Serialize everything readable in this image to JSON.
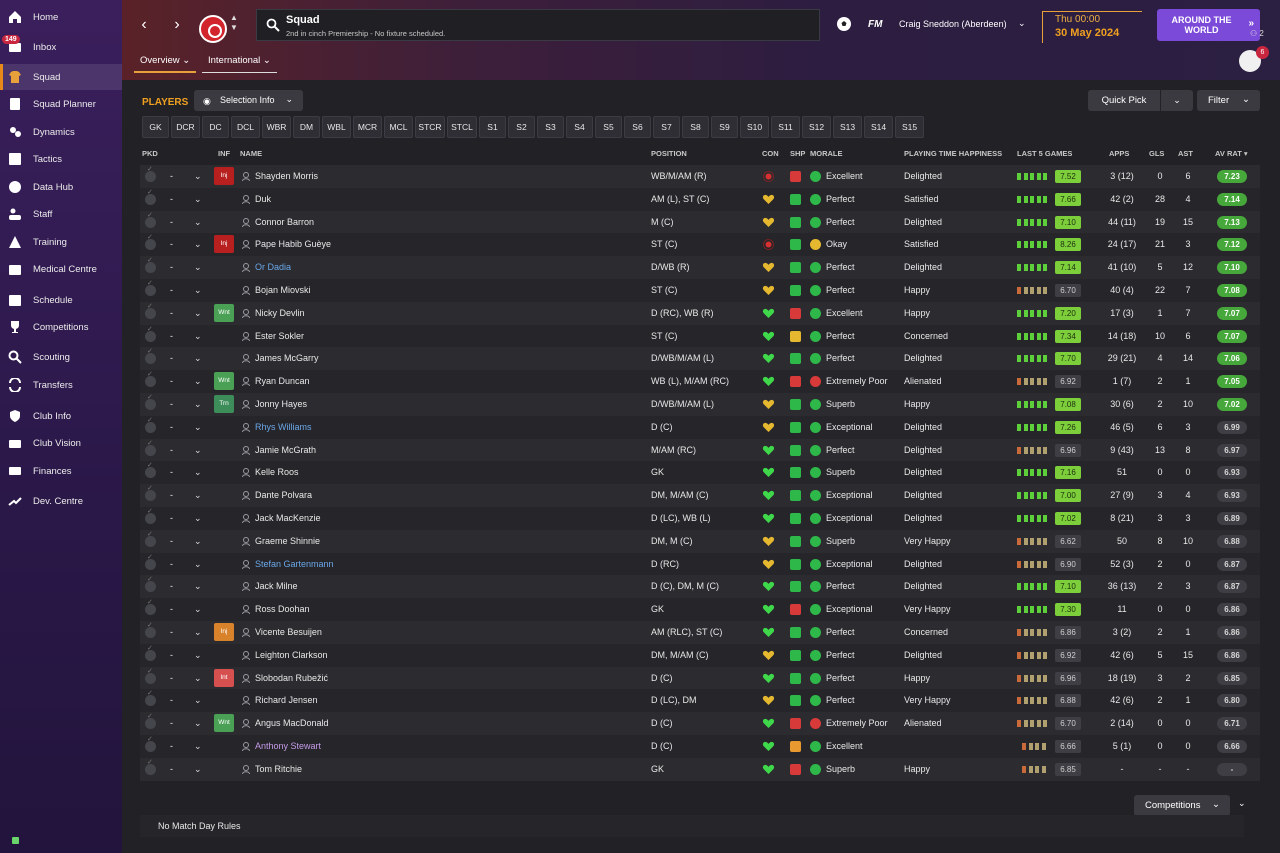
{
  "sidebar": {
    "items": [
      {
        "label": "Home",
        "icon": "home-icon"
      },
      {
        "label": "Inbox",
        "icon": "inbox-icon",
        "badge": "149"
      },
      {
        "label": "Squad",
        "icon": "shirt-icon",
        "active": true
      },
      {
        "label": "Squad Planner",
        "icon": "clipboard-icon"
      },
      {
        "label": "Dynamics",
        "icon": "dynamics-icon"
      },
      {
        "label": "Tactics",
        "icon": "tactics-icon"
      },
      {
        "label": "Data Hub",
        "icon": "data-hub-icon"
      },
      {
        "label": "Staff",
        "icon": "staff-icon"
      },
      {
        "label": "Training",
        "icon": "training-icon"
      },
      {
        "label": "Medical Centre",
        "icon": "medical-icon"
      },
      {
        "label": "Schedule",
        "icon": "calendar-icon"
      },
      {
        "label": "Competitions",
        "icon": "trophy-icon"
      },
      {
        "label": "Scouting",
        "icon": "scouting-icon"
      },
      {
        "label": "Transfers",
        "icon": "transfers-icon"
      },
      {
        "label": "Club Info",
        "icon": "shield-icon"
      },
      {
        "label": "Club Vision",
        "icon": "vision-icon"
      },
      {
        "label": "Finances",
        "icon": "finances-icon"
      },
      {
        "label": "Dev. Centre",
        "icon": "dev-centre-icon"
      }
    ]
  },
  "header": {
    "title": "Squad",
    "subtitle": "2nd in cinch Premiership - No fixture scheduled.",
    "fm_logo": "FM",
    "manager": "Craig Sneddon (Aberdeen)",
    "day_time": "Thu 00:00",
    "date": "30 May 2024",
    "continue_label_1": "AROUND THE",
    "continue_label_2": "WORLD",
    "social_badge": "6",
    "count_indicator": "2",
    "tabs": [
      "Overview",
      "International"
    ]
  },
  "toolbar": {
    "players_label": "PLAYERS",
    "selection_info": "Selection Info",
    "quick_pick": "Quick Pick",
    "filter": "Filter"
  },
  "position_filters": [
    "GK",
    "DCR",
    "DC",
    "DCL",
    "WBR",
    "DM",
    "WBL",
    "MCR",
    "MCL",
    "STCR",
    "STCL",
    "S1",
    "S2",
    "S3",
    "S4",
    "S5",
    "S6",
    "S7",
    "S8",
    "S9",
    "S10",
    "S11",
    "S12",
    "S13",
    "S14",
    "S15"
  ],
  "columns": {
    "pkd": "PKD",
    "inf": "INF",
    "name": "NAME",
    "position": "POSITION",
    "con": "CON",
    "shp": "SHP",
    "morale": "MORALE",
    "pth": "PLAYING TIME HAPPINESS",
    "last5": "LAST 5 GAMES",
    "apps": "APPS",
    "gls": "GLS",
    "ast": "AST",
    "avrat": "AV RAT"
  },
  "players": [
    {
      "inf": "Inj",
      "inf_color": "Inj",
      "name": "Shayden Morris",
      "name_color": "white",
      "position": "WB/M/AM (R)",
      "con": "red-cross",
      "shp": "red",
      "morale_icon": "green",
      "morale": "Excellent",
      "pth": "Delighted",
      "form": [
        1,
        1,
        1,
        1,
        1
      ],
      "form_rating": "7.52",
      "rating_green": true,
      "apps": "3 (12)",
      "gls": "0",
      "ast": "6",
      "avrat": "7.23",
      "av_green": true
    },
    {
      "inf": "",
      "name": "Duk",
      "name_color": "white",
      "position": "AM (L), ST (C)",
      "con": "yellow-heart",
      "shp": "green",
      "morale_icon": "green",
      "morale": "Perfect",
      "pth": "Satisfied",
      "form": [
        1,
        1,
        1,
        1,
        1
      ],
      "form_rating": "7.66",
      "rating_green": true,
      "apps": "42 (2)",
      "gls": "28",
      "ast": "4",
      "avrat": "7.14",
      "av_green": true
    },
    {
      "inf": "",
      "name": "Connor Barron",
      "name_color": "white",
      "position": "M (C)",
      "con": "yellow-heart",
      "shp": "green",
      "morale_icon": "green",
      "morale": "Perfect",
      "pth": "Delighted",
      "form": [
        1,
        1,
        1,
        1,
        1
      ],
      "form_rating": "7.10",
      "rating_green": true,
      "apps": "44 (11)",
      "gls": "19",
      "ast": "15",
      "avrat": "7.13",
      "av_green": true
    },
    {
      "inf": "Inj",
      "inf_color": "Inj",
      "name": "Pape Habib Guèye",
      "name_color": "white",
      "position": "ST (C)",
      "con": "red-cross",
      "shp": "green",
      "morale_icon": "yellow",
      "morale": "Okay",
      "pth": "Satisfied",
      "form": [
        1,
        1,
        1,
        1,
        1
      ],
      "form_rating": "8.26",
      "rating_green": true,
      "apps": "24 (17)",
      "gls": "21",
      "ast": "3",
      "avrat": "7.12",
      "av_green": true
    },
    {
      "inf": "",
      "name": "Or Dadia",
      "name_color": "blue",
      "position": "D/WB (R)",
      "con": "yellow-heart",
      "shp": "green",
      "morale_icon": "green",
      "morale": "Perfect",
      "pth": "Delighted",
      "form": [
        1,
        1,
        1,
        1,
        1
      ],
      "form_rating": "7.14",
      "rating_green": true,
      "apps": "41 (10)",
      "gls": "5",
      "ast": "12",
      "avrat": "7.10",
      "av_green": true
    },
    {
      "inf": "",
      "name": "Bojan Miovski",
      "name_color": "white",
      "position": "ST (C)",
      "con": "yellow-heart",
      "shp": "green",
      "morale_icon": "green",
      "morale": "Perfect",
      "pth": "Happy",
      "form": [
        0,
        0,
        0,
        0,
        0
      ],
      "form_rating": "6.70",
      "rating_green": false,
      "apps": "40 (4)",
      "gls": "22",
      "ast": "7",
      "avrat": "7.08",
      "av_green": true
    },
    {
      "inf": "Wnt",
      "inf_color": "Wnt",
      "name": "Nicky Devlin",
      "name_color": "white",
      "position": "D (RC), WB (R)",
      "con": "green-heart",
      "shp": "red",
      "morale_icon": "green",
      "morale": "Excellent",
      "pth": "Happy",
      "form": [
        1,
        1,
        1,
        1,
        1
      ],
      "form_rating": "7.20",
      "rating_green": true,
      "apps": "17 (3)",
      "gls": "1",
      "ast": "7",
      "avrat": "7.07",
      "av_green": true
    },
    {
      "inf": "",
      "name": "Ester Sokler",
      "name_color": "white",
      "position": "ST (C)",
      "con": "green-heart",
      "shp": "yellow",
      "morale_icon": "green",
      "morale": "Perfect",
      "pth": "Concerned",
      "form": [
        1,
        1,
        1,
        1,
        1
      ],
      "form_rating": "7.34",
      "rating_green": true,
      "apps": "14 (18)",
      "gls": "10",
      "ast": "6",
      "avrat": "7.07",
      "av_green": true
    },
    {
      "inf": "",
      "name": "James McGarry",
      "name_color": "white",
      "position": "D/WB/M/AM (L)",
      "con": "green-heart",
      "shp": "green",
      "morale_icon": "green",
      "morale": "Perfect",
      "pth": "Delighted",
      "form": [
        1,
        1,
        1,
        1,
        1
      ],
      "form_rating": "7.70",
      "rating_green": true,
      "apps": "29 (21)",
      "gls": "4",
      "ast": "14",
      "avrat": "7.06",
      "av_green": true
    },
    {
      "inf": "Wnt",
      "inf_color": "Wnt",
      "name": "Ryan Duncan",
      "name_color": "white",
      "position": "WB (L), M/AM (RC)",
      "con": "green-heart",
      "shp": "red",
      "morale_icon": "red",
      "morale": "Extremely Poor",
      "pth": "Alienated",
      "form": [
        0,
        0,
        0,
        0,
        0
      ],
      "form_rating": "6.92",
      "rating_green": false,
      "apps": "1 (7)",
      "gls": "2",
      "ast": "1",
      "avrat": "7.05",
      "av_green": true
    },
    {
      "inf": "Trn",
      "inf_color": "Trn",
      "name": "Jonny Hayes",
      "name_color": "white",
      "position": "D/WB/M/AM (L)",
      "con": "yellow-heart",
      "shp": "green",
      "morale_icon": "green",
      "morale": "Superb",
      "pth": "Happy",
      "form": [
        1,
        1,
        1,
        1,
        1
      ],
      "form_rating": "7.08",
      "rating_green": true,
      "apps": "30 (6)",
      "gls": "2",
      "ast": "10",
      "avrat": "7.02",
      "av_green": true
    },
    {
      "inf": "",
      "name": "Rhys Williams",
      "name_color": "blue",
      "position": "D (C)",
      "con": "yellow-heart",
      "shp": "green",
      "morale_icon": "green",
      "morale": "Exceptional",
      "pth": "Delighted",
      "form": [
        1,
        1,
        1,
        1,
        1
      ],
      "form_rating": "7.26",
      "rating_green": true,
      "apps": "46 (5)",
      "gls": "6",
      "ast": "3",
      "avrat": "6.99",
      "av_green": false
    },
    {
      "inf": "",
      "name": "Jamie McGrath",
      "name_color": "white",
      "position": "M/AM (RC)",
      "con": "green-heart",
      "shp": "green",
      "morale_icon": "green",
      "morale": "Perfect",
      "pth": "Delighted",
      "form": [
        0,
        0,
        0,
        0,
        0
      ],
      "form_rating": "6.96",
      "rating_green": false,
      "apps": "9 (43)",
      "gls": "13",
      "ast": "8",
      "avrat": "6.97",
      "av_green": false
    },
    {
      "inf": "",
      "name": "Kelle Roos",
      "name_color": "white",
      "position": "GK",
      "con": "green-heart",
      "shp": "green",
      "morale_icon": "green",
      "morale": "Superb",
      "pth": "Delighted",
      "form": [
        1,
        1,
        1,
        1,
        1
      ],
      "form_rating": "7.16",
      "rating_green": true,
      "apps": "51",
      "gls": "0",
      "ast": "0",
      "avrat": "6.93",
      "av_green": false
    },
    {
      "inf": "",
      "name": "Dante Polvara",
      "name_color": "white",
      "position": "DM, M/AM (C)",
      "con": "green-heart",
      "shp": "green",
      "morale_icon": "green",
      "morale": "Exceptional",
      "pth": "Delighted",
      "form": [
        1,
        1,
        1,
        1,
        1
      ],
      "form_rating": "7.00",
      "rating_green": true,
      "apps": "27 (9)",
      "gls": "3",
      "ast": "4",
      "avrat": "6.93",
      "av_green": false
    },
    {
      "inf": "",
      "name": "Jack MacKenzie",
      "name_color": "white",
      "position": "D (LC), WB (L)",
      "con": "green-heart",
      "shp": "green",
      "morale_icon": "green",
      "morale": "Exceptional",
      "pth": "Delighted",
      "form": [
        1,
        1,
        1,
        1,
        1
      ],
      "form_rating": "7.02",
      "rating_green": true,
      "apps": "8 (21)",
      "gls": "3",
      "ast": "3",
      "avrat": "6.89",
      "av_green": false
    },
    {
      "inf": "",
      "name": "Graeme Shinnie",
      "name_color": "white",
      "position": "DM, M (C)",
      "con": "yellow-heart",
      "shp": "green",
      "morale_icon": "green",
      "morale": "Superb",
      "pth": "Very Happy",
      "form": [
        0,
        0,
        0,
        0,
        0
      ],
      "form_rating": "6.62",
      "rating_green": false,
      "apps": "50",
      "gls": "8",
      "ast": "10",
      "avrat": "6.88",
      "av_green": false
    },
    {
      "inf": "",
      "name": "Stefan Gartenmann",
      "name_color": "blue",
      "position": "D (RC)",
      "con": "yellow-heart",
      "shp": "green",
      "morale_icon": "green",
      "morale": "Exceptional",
      "pth": "Delighted",
      "form": [
        0,
        0,
        0,
        0,
        0
      ],
      "form_rating": "6.90",
      "rating_green": false,
      "apps": "52 (3)",
      "gls": "2",
      "ast": "0",
      "avrat": "6.87",
      "av_green": false
    },
    {
      "inf": "",
      "name": "Jack Milne",
      "name_color": "white",
      "position": "D (C), DM, M (C)",
      "con": "green-heart",
      "shp": "green",
      "morale_icon": "green",
      "morale": "Perfect",
      "pth": "Delighted",
      "form": [
        1,
        1,
        1,
        1,
        1
      ],
      "form_rating": "7.10",
      "rating_green": true,
      "apps": "36 (13)",
      "gls": "2",
      "ast": "3",
      "avrat": "6.87",
      "av_green": false
    },
    {
      "inf": "",
      "name": "Ross Doohan",
      "name_color": "white",
      "position": "GK",
      "con": "green-heart",
      "shp": "red",
      "morale_icon": "green",
      "morale": "Exceptional",
      "pth": "Very Happy",
      "form": [
        1,
        1,
        1,
        1,
        1
      ],
      "form_rating": "7.30",
      "rating_green": true,
      "apps": "11",
      "gls": "0",
      "ast": "0",
      "avrat": "6.86",
      "av_green": false
    },
    {
      "inf": "Inj",
      "inf_color": "InjO",
      "name": "Vicente Besuijen",
      "name_color": "white",
      "position": "AM (RLC), ST (C)",
      "con": "green-heart",
      "shp": "green",
      "morale_icon": "green",
      "morale": "Perfect",
      "pth": "Concerned",
      "form": [
        0,
        0,
        0,
        0,
        0
      ],
      "form_rating": "6.86",
      "rating_green": false,
      "apps": "3 (2)",
      "gls": "2",
      "ast": "1",
      "avrat": "6.86",
      "av_green": false
    },
    {
      "inf": "",
      "name": "Leighton Clarkson",
      "name_color": "white",
      "position": "DM, M/AM (C)",
      "con": "yellow-heart",
      "shp": "green",
      "morale_icon": "green",
      "morale": "Perfect",
      "pth": "Delighted",
      "form": [
        0,
        0,
        0,
        0,
        0
      ],
      "form_rating": "6.92",
      "rating_green": false,
      "apps": "42 (6)",
      "gls": "5",
      "ast": "15",
      "avrat": "6.86",
      "av_green": false
    },
    {
      "inf": "Int",
      "inf_color": "Int",
      "name": "Slobodan Rubežić",
      "name_color": "white",
      "position": "D (C)",
      "con": "green-heart",
      "shp": "green",
      "morale_icon": "green",
      "morale": "Perfect",
      "pth": "Happy",
      "form": [
        0,
        0,
        0,
        0,
        0
      ],
      "form_rating": "6.96",
      "rating_green": false,
      "apps": "18 (19)",
      "gls": "3",
      "ast": "2",
      "avrat": "6.85",
      "av_green": false
    },
    {
      "inf": "",
      "name": "Richard Jensen",
      "name_color": "white",
      "position": "D (LC), DM",
      "con": "yellow-heart",
      "shp": "green",
      "morale_icon": "green",
      "morale": "Perfect",
      "pth": "Very Happy",
      "form": [
        0,
        0,
        0,
        0,
        0
      ],
      "form_rating": "6.88",
      "rating_green": false,
      "apps": "42 (6)",
      "gls": "2",
      "ast": "1",
      "avrat": "6.80",
      "av_green": false
    },
    {
      "inf": "Wnt",
      "inf_color": "Wnt",
      "name": "Angus MacDonald",
      "name_color": "white",
      "position": "D (C)",
      "con": "green-heart",
      "shp": "red",
      "morale_icon": "red",
      "morale": "Extremely Poor",
      "pth": "Alienated",
      "form": [
        0,
        0,
        0,
        0,
        0
      ],
      "form_rating": "6.70",
      "rating_green": false,
      "apps": "2 (14)",
      "gls": "0",
      "ast": "0",
      "avrat": "6.71",
      "av_green": false
    },
    {
      "inf": "",
      "name": "Anthony Stewart",
      "name_color": "purple",
      "position": "D (C)",
      "con": "green-heart",
      "shp": "orange",
      "morale_icon": "green",
      "morale": "Excellent",
      "pth": "",
      "form": [
        0,
        0,
        0,
        0
      ],
      "form_rating": "6.66",
      "rating_green": false,
      "apps": "5 (1)",
      "gls": "0",
      "ast": "0",
      "avrat": "6.66",
      "av_green": false
    },
    {
      "inf": "",
      "name": "Tom Ritchie",
      "name_color": "white",
      "position": "GK",
      "con": "green-heart",
      "shp": "red",
      "morale_icon": "green",
      "morale": "Superb",
      "pth": "Happy",
      "form": [
        0,
        0,
        0,
        0
      ],
      "form_rating": "6.85",
      "rating_green": false,
      "apps": "-",
      "gls": "-",
      "ast": "-",
      "avrat": "-",
      "av_green": false
    }
  ],
  "row_common": {
    "dash": "-"
  },
  "footer": {
    "competitions": "Competitions",
    "match_rules": "No Match Day Rules"
  },
  "colors": {
    "accent": "#e8a13a",
    "continue": "#7c4ad8",
    "rating_green": "#7ccf3a"
  }
}
